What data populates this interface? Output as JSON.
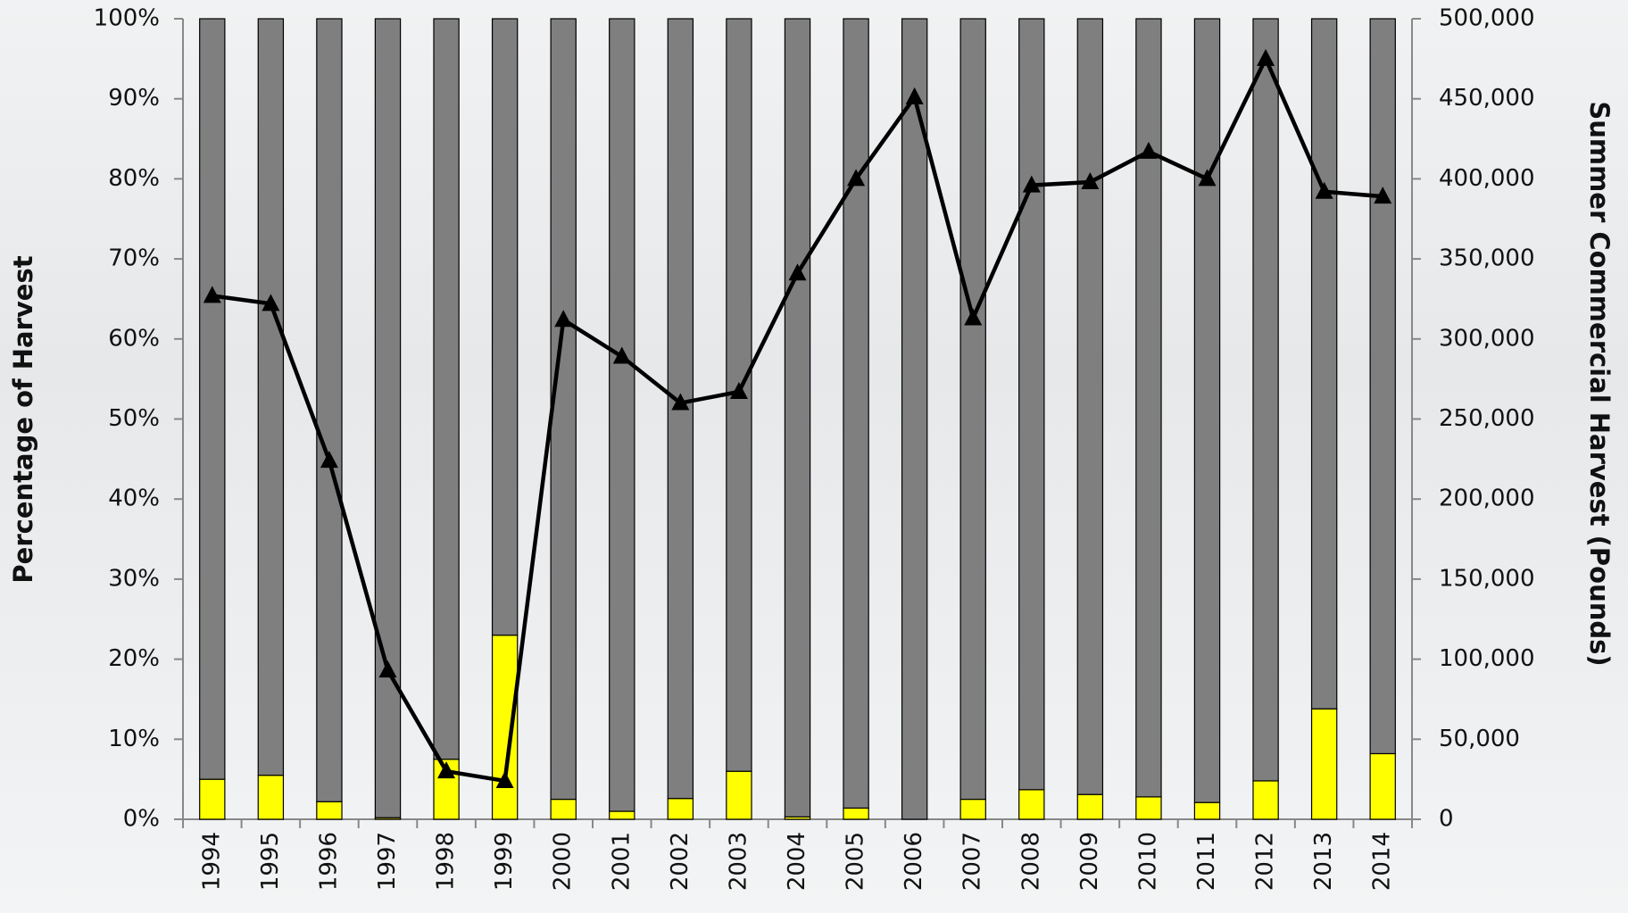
{
  "chart_data": {
    "type": "bar",
    "stacked": true,
    "y_label": "Percentage of Harvest",
    "y2_label": "Summer Commercial Harvest (Pounds)",
    "categories": [
      "1994",
      "1995",
      "1996",
      "1997",
      "1998",
      "1999",
      "2000",
      "2001",
      "2002",
      "2003",
      "2004",
      "2005",
      "2006",
      "2007",
      "2008",
      "2009",
      "2010",
      "2011",
      "2012",
      "2013",
      "2014"
    ],
    "series": [
      {
        "type": "bar",
        "color": "#ffff00",
        "values": [
          5,
          5.5,
          2.2,
          0.2,
          7.5,
          23,
          2.5,
          1,
          2.6,
          6,
          0.3,
          1.4,
          0,
          2.5,
          3.7,
          3.1,
          2.8,
          2.1,
          4.8,
          13.8,
          8.2
        ]
      },
      {
        "type": "bar",
        "color": "#7f7f7f",
        "values": [
          95,
          94.5,
          97.8,
          99.8,
          92.5,
          77,
          97.5,
          99,
          97.4,
          94,
          99.7,
          98.6,
          100,
          97.5,
          96.3,
          96.9,
          97.2,
          97.9,
          95.2,
          86.2,
          91.8
        ]
      },
      {
        "type": "line",
        "axis": "y2",
        "color": "#000000",
        "values": [
          327000,
          322000,
          224000,
          93000,
          30000,
          24000,
          312000,
          289000,
          260000,
          267000,
          341000,
          400000,
          451000,
          313000,
          396000,
          398000,
          417000,
          400000,
          475000,
          392000,
          389000
        ]
      }
    ],
    "ylim": [
      0,
      100
    ],
    "yticks": [
      {
        "value": 0,
        "label": "0%"
      },
      {
        "value": 10,
        "label": "10%"
      },
      {
        "value": 20,
        "label": "20%"
      },
      {
        "value": 30,
        "label": "30%"
      },
      {
        "value": 40,
        "label": "40%"
      },
      {
        "value": 50,
        "label": "50%"
      },
      {
        "value": 60,
        "label": "60%"
      },
      {
        "value": 70,
        "label": "70%"
      },
      {
        "value": 80,
        "label": "80%"
      },
      {
        "value": 90,
        "label": "90%"
      },
      {
        "value": 100,
        "label": "100%"
      }
    ],
    "y2lim": [
      0,
      500000
    ],
    "y2ticks": [
      0,
      {
        "value": 50000,
        "label": "50,000"
      },
      {
        "value": 100000,
        "label": "100,000"
      },
      {
        "value": 150000,
        "label": "150,000"
      },
      {
        "value": 200000,
        "label": "200,000"
      },
      {
        "value": 250000,
        "label": "250,000"
      },
      {
        "value": 300000,
        "label": "300,000"
      },
      {
        "value": 350000,
        "label": "350,000"
      },
      {
        "value": 400000,
        "label": "400,000"
      },
      {
        "value": 450000,
        "label": "450,000"
      },
      {
        "value": 500000,
        "label": "500,000"
      }
    ]
  }
}
